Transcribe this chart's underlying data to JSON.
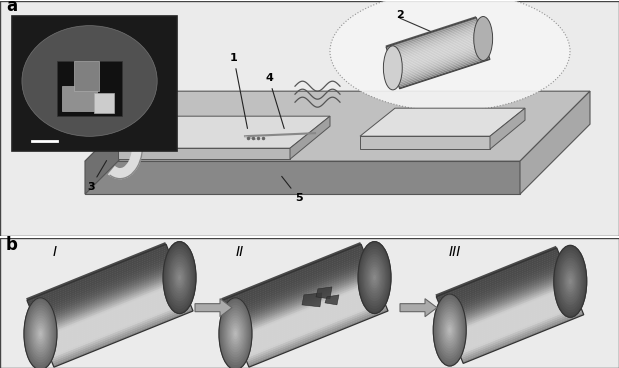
{
  "fig_width": 6.19,
  "fig_height": 3.68,
  "dpi": 100,
  "bg_color": "#ffffff",
  "panel_a_label": "a",
  "panel_b_label": "b",
  "panel_b_labels": [
    "I",
    "II",
    "III"
  ],
  "panel_a_bg": "#ececec",
  "panel_b_bg": "#ececec",
  "platform_top": "#c8c8c8",
  "platform_front": "#8a8a8a",
  "platform_right": "#a0a0a0",
  "chip_top": "#e0e0e0",
  "chip_front": "#c0c0c0",
  "chip_right": "#b0b0b0",
  "nanowire_light": "#e0e0e0",
  "nanowire_mid": "#b0b0b0",
  "nanowire_dark": "#606060",
  "inset_bg": "#222222",
  "arrow_gray": "#999999"
}
